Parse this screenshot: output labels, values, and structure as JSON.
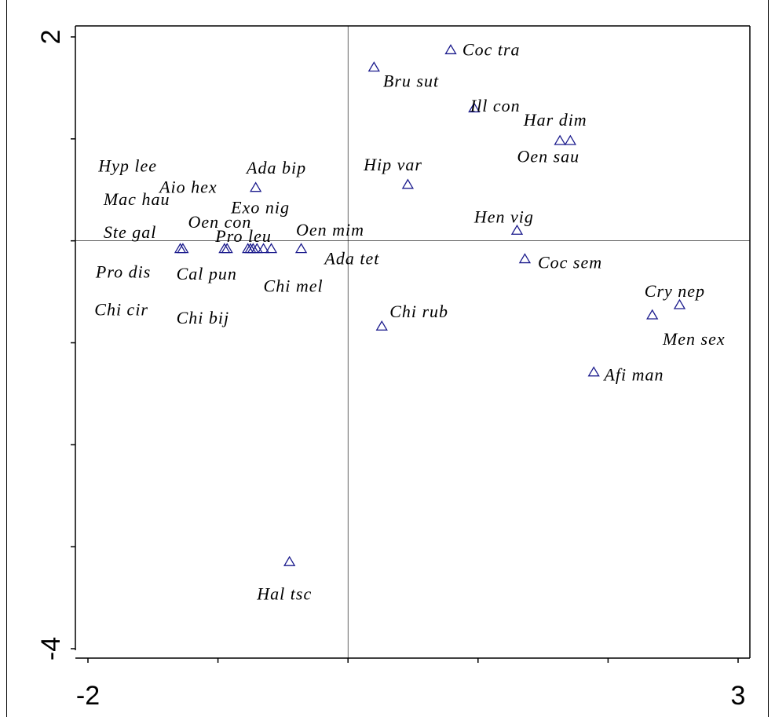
{
  "chart_data": {
    "type": "scatter",
    "title": "",
    "xlabel": "",
    "ylabel": "",
    "xlim": [
      -2,
      3
    ],
    "ylim": [
      -4,
      2
    ],
    "x_tick_labels": [
      "-2",
      "3"
    ],
    "y_tick_labels": [
      "2",
      "-4"
    ],
    "reference_lines": {
      "x": 0,
      "y": 0
    },
    "marker": "triangle-open",
    "marker_color": "#1a1a8c",
    "points": [
      {
        "x": -1.27,
        "y": -0.08
      },
      {
        "x": -1.29,
        "y": -0.08
      },
      {
        "x": -0.93,
        "y": -0.08
      },
      {
        "x": -0.95,
        "y": -0.08
      },
      {
        "x": -0.77,
        "y": -0.08
      },
      {
        "x": -0.75,
        "y": -0.08
      },
      {
        "x": -0.73,
        "y": -0.08
      },
      {
        "x": -0.7,
        "y": -0.08
      },
      {
        "x": -0.65,
        "y": -0.08
      },
      {
        "x": -0.59,
        "y": -0.08
      },
      {
        "x": -0.36,
        "y": -0.08
      },
      {
        "x": -0.71,
        "y": 0.52
      },
      {
        "x": 0.2,
        "y": 1.7
      },
      {
        "x": 0.79,
        "y": 1.87
      },
      {
        "x": 0.97,
        "y": 1.3
      },
      {
        "x": 1.63,
        "y": 0.98
      },
      {
        "x": 1.71,
        "y": 0.98
      },
      {
        "x": 0.46,
        "y": 0.55
      },
      {
        "x": 1.3,
        "y": 0.1
      },
      {
        "x": 1.36,
        "y": -0.18
      },
      {
        "x": 0.26,
        "y": -0.84
      },
      {
        "x": 2.55,
        "y": -0.63
      },
      {
        "x": 2.34,
        "y": -0.73
      },
      {
        "x": 1.89,
        "y": -1.29
      },
      {
        "x": -0.45,
        "y": -3.15
      }
    ],
    "labels": [
      {
        "text": "Coc tra",
        "x": 0.88,
        "y": 1.82
      },
      {
        "text": "Bru sut",
        "x": 0.27,
        "y": 1.51
      },
      {
        "text": "Ill con",
        "x": 0.94,
        "y": 1.27
      },
      {
        "text": "Har dim",
        "x": 1.35,
        "y": 1.13
      },
      {
        "text": "Oen sau",
        "x": 1.3,
        "y": 0.77
      },
      {
        "text": "Hyp lee",
        "x": -1.92,
        "y": 0.68
      },
      {
        "text": "Ada bip",
        "x": -0.78,
        "y": 0.66
      },
      {
        "text": "Hip var",
        "x": 0.12,
        "y": 0.69
      },
      {
        "text": "Aio hex",
        "x": -1.45,
        "y": 0.47
      },
      {
        "text": "Mac hau",
        "x": -1.88,
        "y": 0.35
      },
      {
        "text": "Exo nig",
        "x": -0.9,
        "y": 0.27
      },
      {
        "text": "Oen con",
        "x": -1.23,
        "y": 0.13
      },
      {
        "text": "Hen vig",
        "x": 0.97,
        "y": 0.18
      },
      {
        "text": "Oen mim",
        "x": -0.4,
        "y": 0.05
      },
      {
        "text": "Ste gal",
        "x": -1.88,
        "y": 0.03
      },
      {
        "text": "Pro leu",
        "x": -1.02,
        "y": -0.01
      },
      {
        "text": "Ada tet",
        "x": -0.18,
        "y": -0.23
      },
      {
        "text": "Coc sem",
        "x": 1.46,
        "y": -0.27
      },
      {
        "text": "Pro dis",
        "x": -1.94,
        "y": -0.36
      },
      {
        "text": "Cal pun",
        "x": -1.32,
        "y": -0.38
      },
      {
        "text": "Chi mel",
        "x": -0.65,
        "y": -0.5
      },
      {
        "text": "Cry nep",
        "x": 2.28,
        "y": -0.55
      },
      {
        "text": "Chi cir",
        "x": -1.95,
        "y": -0.73
      },
      {
        "text": "Chi rub",
        "x": 0.32,
        "y": -0.75
      },
      {
        "text": "Chi bij",
        "x": -1.32,
        "y": -0.81
      },
      {
        "text": "Men sex",
        "x": 2.42,
        "y": -1.02
      },
      {
        "text": "Afi man",
        "x": 1.97,
        "y": -1.37
      },
      {
        "text": "Hal tsc",
        "x": -0.7,
        "y": -3.52
      }
    ]
  }
}
